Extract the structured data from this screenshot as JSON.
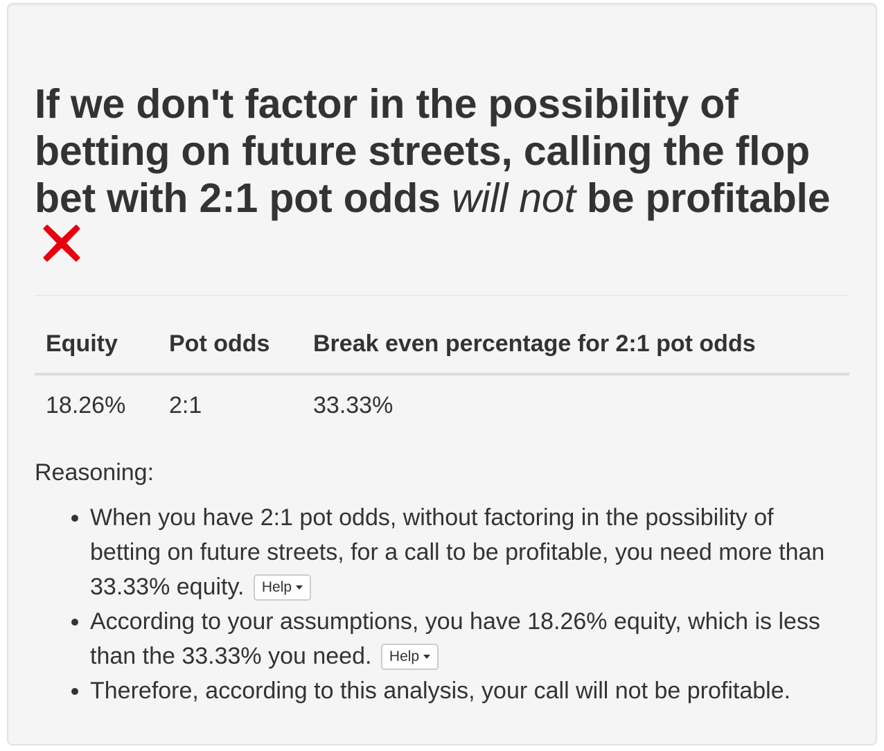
{
  "heading": {
    "part1": "If we don't factor in the possibility of betting on future streets, calling the flop bet with 2:1 pot odds ",
    "emphasis": "will not",
    "part2": " be profitable",
    "result_icon": "red-x-icon"
  },
  "table": {
    "headers": [
      "Equity",
      "Pot odds",
      "Break even percentage for 2:1 pot odds"
    ],
    "rows": [
      [
        "18.26%",
        "2:1",
        "33.33%"
      ]
    ]
  },
  "reasoning": {
    "label": "Reasoning:",
    "items": [
      "When you have 2:1 pot odds, without factoring in the possibility of betting on future streets, for a call to be profitable, you need more than 33.33% equity.",
      "According to your assumptions, you have 18.26% equity, which is less than the 33.33% you need.",
      "Therefore, according to this analysis, your call will not be profitable."
    ],
    "help_label": "Help"
  },
  "colors": {
    "x_mark": "#e8000d",
    "background": "#f5f5f5",
    "text": "#333333"
  }
}
